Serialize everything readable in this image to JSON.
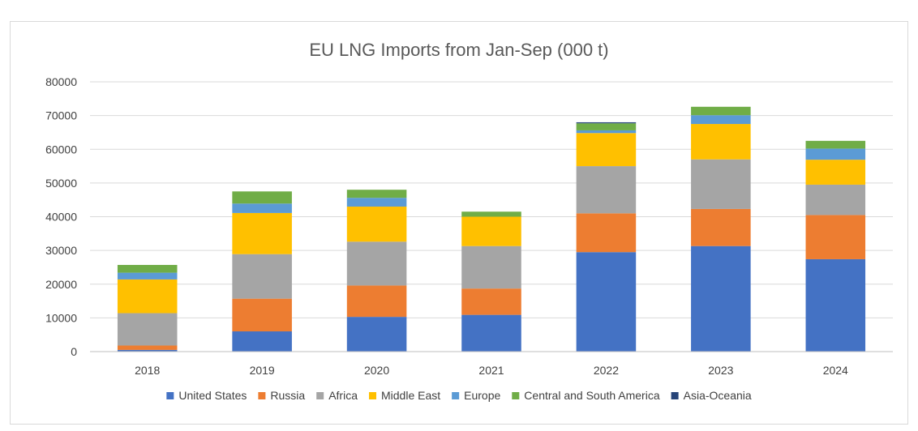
{
  "chart_data": {
    "type": "bar",
    "stacked": true,
    "title": "EU LNG Imports from Jan-Sep (000 t)",
    "xlabel": "",
    "ylabel": "",
    "categories": [
      "2018",
      "2019",
      "2020",
      "2021",
      "2022",
      "2023",
      "2024"
    ],
    "ylim": [
      0,
      80000
    ],
    "yticks": [
      0,
      10000,
      20000,
      30000,
      40000,
      50000,
      60000,
      70000,
      80000
    ],
    "ytick_labels": [
      "0",
      "10000",
      "20000",
      "30000",
      "40000",
      "50000",
      "60000",
      "70000",
      "80000"
    ],
    "grid": true,
    "legend_position": "bottom",
    "series": [
      {
        "name": "United States",
        "color": "#4472C4",
        "values": [
          500,
          6000,
          10300,
          10900,
          29500,
          31300,
          27400
        ]
      },
      {
        "name": "Russia",
        "color": "#ED7D31",
        "values": [
          1300,
          9700,
          9300,
          7800,
          11500,
          11000,
          13100
        ]
      },
      {
        "name": "Africa",
        "color": "#A5A5A5",
        "values": [
          9600,
          13200,
          13000,
          12600,
          14000,
          14700,
          9000
        ]
      },
      {
        "name": "Middle East",
        "color": "#FFC000",
        "values": [
          10000,
          12200,
          10400,
          8700,
          9800,
          10500,
          7400
        ]
      },
      {
        "name": "Europe",
        "color": "#5B9BD5",
        "values": [
          2000,
          2800,
          2600,
          0,
          800,
          2600,
          3300
        ]
      },
      {
        "name": "Central and South America",
        "color": "#70AD47",
        "values": [
          2300,
          3600,
          2400,
          1500,
          2100,
          2500,
          2300
        ]
      },
      {
        "name": "Asia-Oceania",
        "color": "#264478",
        "values": [
          0,
          0,
          0,
          0,
          300,
          0,
          0
        ]
      }
    ]
  }
}
